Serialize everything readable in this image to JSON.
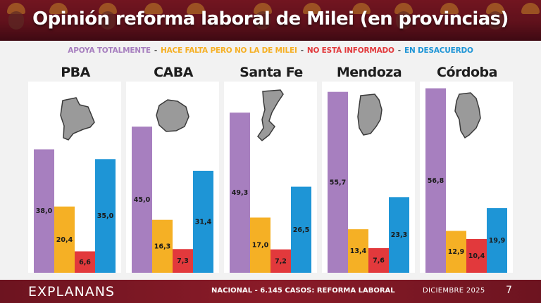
{
  "title": "Opinión reforma laboral de Milei (en provincias)",
  "legend": [
    {
      "label": "APOYA TOTALMENTE",
      "color": "#a77fbf"
    },
    {
      "label": "HACE FALTA PERO NO LA DE MILEI",
      "color": "#f5b025"
    },
    {
      "label": "NO ESTÁ INFORMADO",
      "color": "#e2393c"
    },
    {
      "label": "EN DESACUERDO",
      "color": "#1e95d6"
    }
  ],
  "legend_separator": "-",
  "chart_data": {
    "type": "bar",
    "title": "Opinión reforma laboral de Milei (en provincias)",
    "categories": [
      "PBA",
      "CABA",
      "Santa Fe",
      "Mendoza",
      "Córdoba"
    ],
    "series": [
      {
        "name": "APOYA TOTALMENTE",
        "color": "#a77fbf",
        "values": [
          38.0,
          45.0,
          49.3,
          55.7,
          56.8
        ]
      },
      {
        "name": "HACE FALTA PERO NO LA DE MILEI",
        "color": "#f5b025",
        "values": [
          20.4,
          16.3,
          17.0,
          13.4,
          12.9
        ]
      },
      {
        "name": "NO ESTÁ INFORMADO",
        "color": "#e2393c",
        "values": [
          6.6,
          7.3,
          7.2,
          7.6,
          10.4
        ]
      },
      {
        "name": "EN DESACUERDO",
        "color": "#1e95d6",
        "values": [
          35.0,
          31.4,
          26.5,
          23.3,
          19.9
        ]
      }
    ],
    "value_labels": [
      [
        "38,0",
        "45,0",
        "49,3",
        "55,7",
        "56,8"
      ],
      [
        "20,4",
        "16,3",
        "17,0",
        "13,4",
        "12,9"
      ],
      [
        "6,6",
        "7,3",
        "7,2",
        "7,6",
        "10,4"
      ],
      [
        "35,0",
        "31,4",
        "26,5",
        "23,3",
        "19,9"
      ]
    ],
    "ylim": [
      0,
      60
    ],
    "grid": false,
    "legend_position": "top"
  },
  "footer": {
    "brand": "EXPLANANS",
    "cases": "NACIONAL - 6.145 CASOS:",
    "topic": "REFORMA LABORAL",
    "date": "DICIEMBRE 2025",
    "page": "7"
  }
}
